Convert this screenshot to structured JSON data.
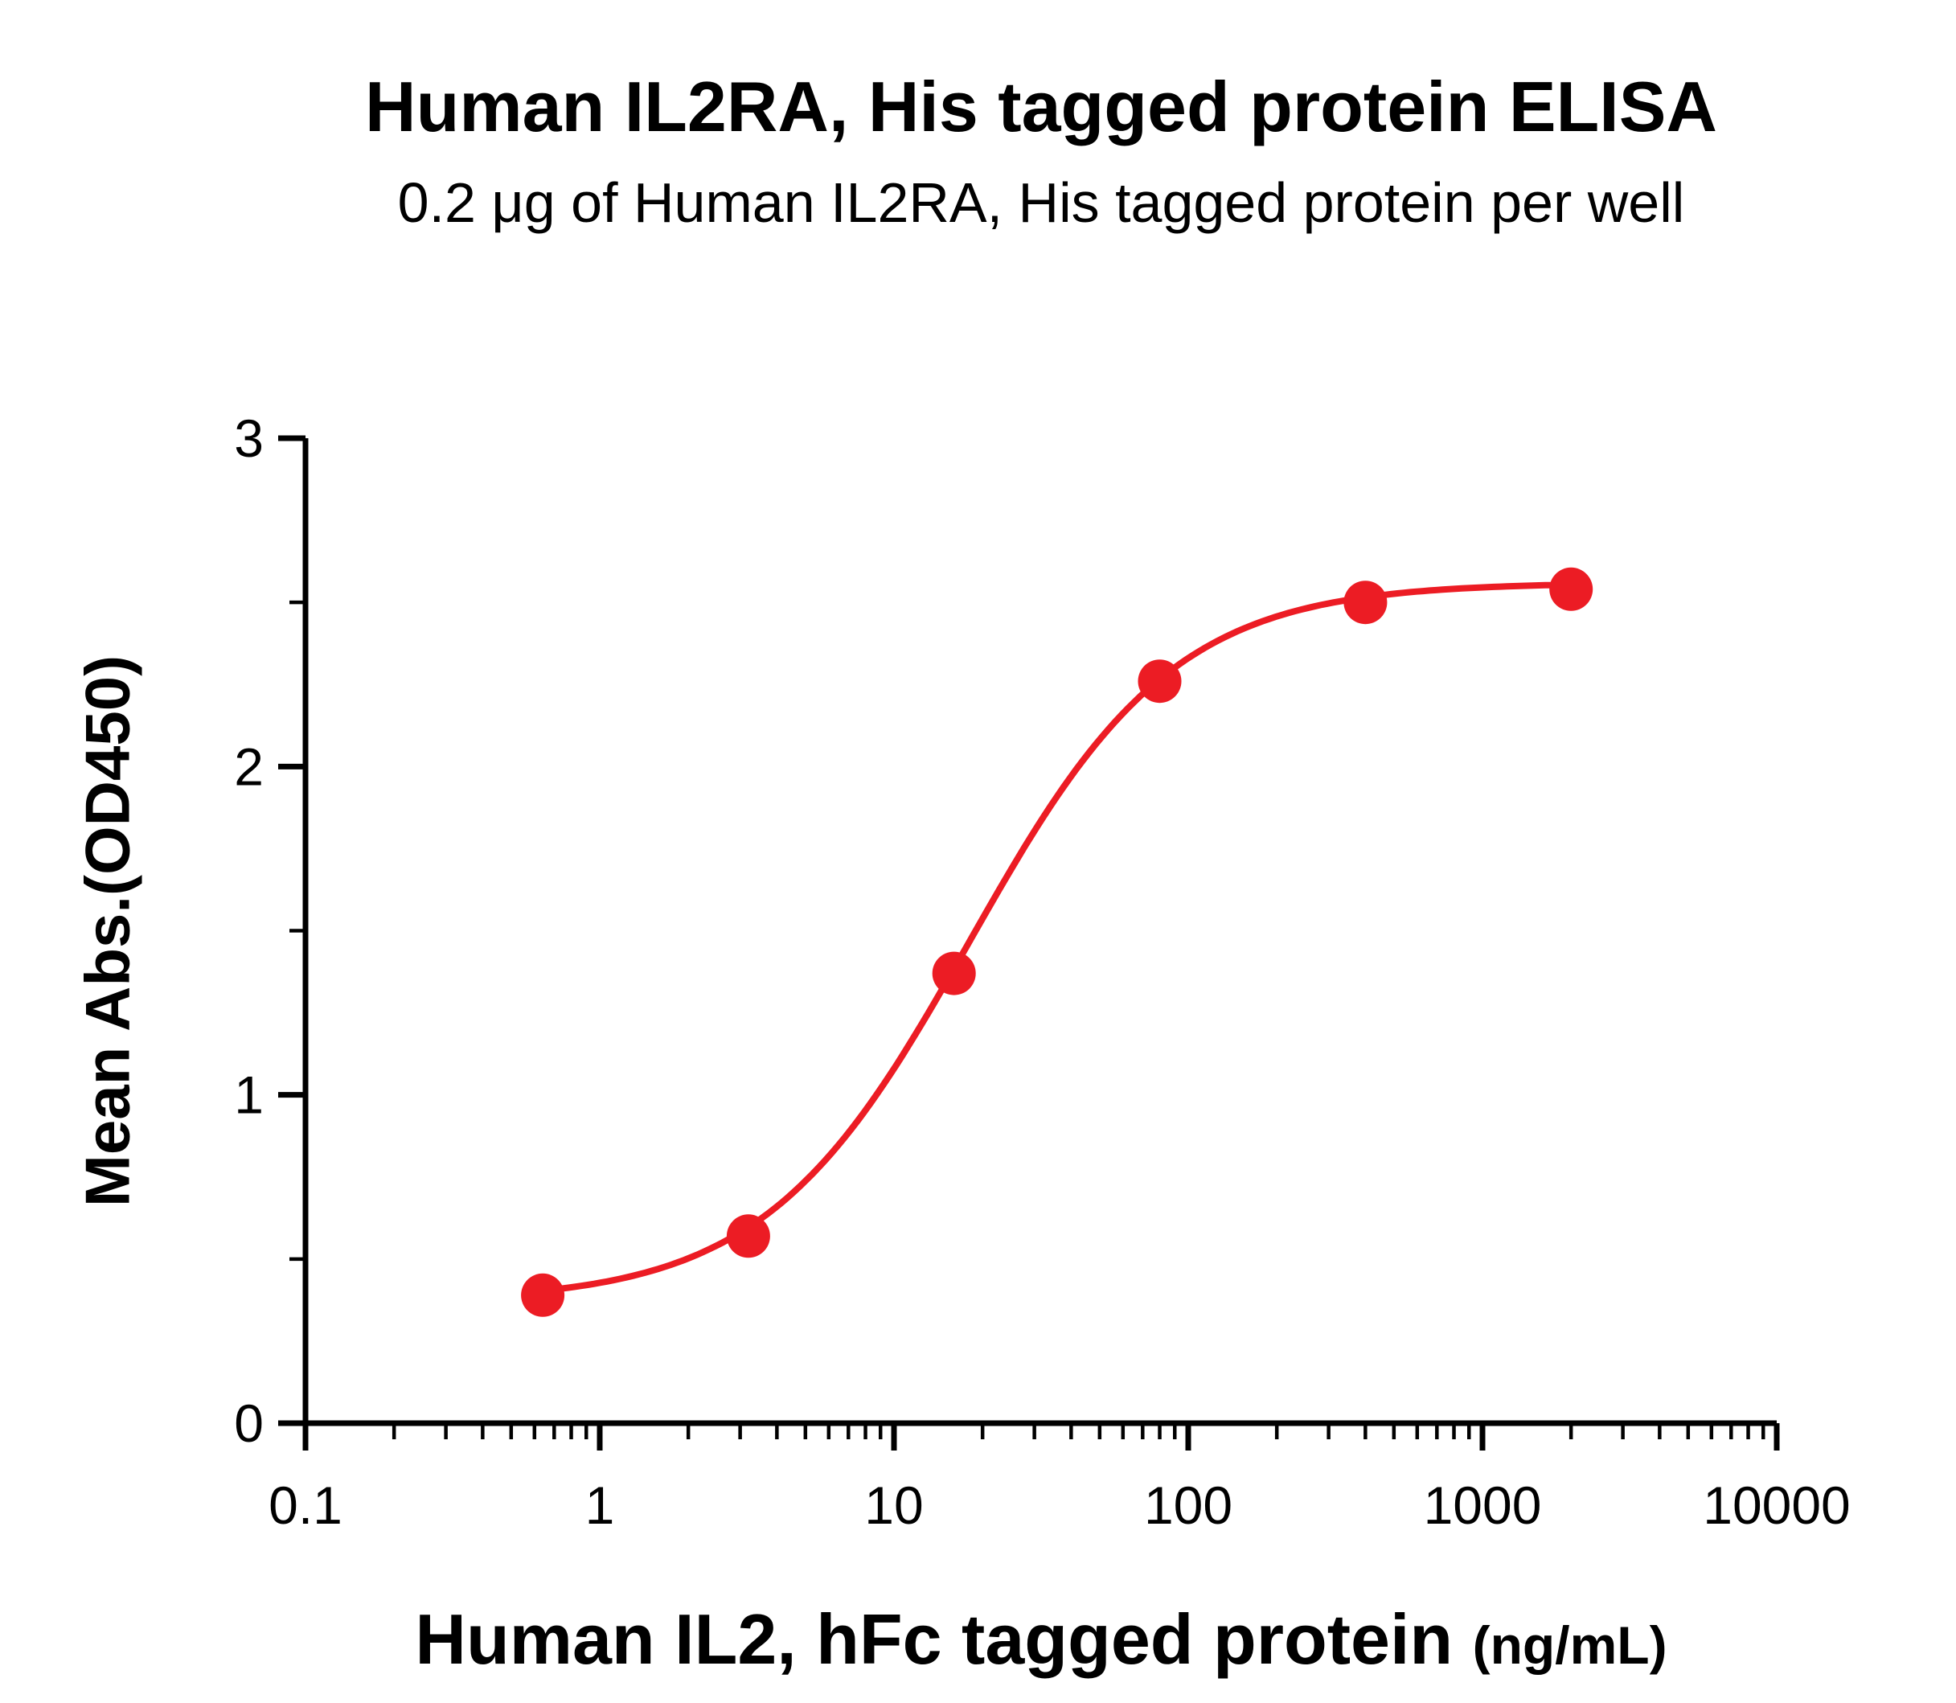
{
  "chart_data": {
    "type": "scatter",
    "title": "Human IL2RA, His tagged protein ELISA",
    "subtitle": "0.2 μg of Human IL2RA, His tagged protein per well",
    "xlabel": "Human IL2, hFc tagged protein",
    "xlabel_unit": "(ng/mL)",
    "ylabel": "Mean Abs.(OD450)",
    "x_scale": "log10",
    "xlim": [
      0.1,
      10000
    ],
    "ylim": [
      0,
      3
    ],
    "x_ticks": [
      0.1,
      1,
      10,
      100,
      1000,
      10000
    ],
    "x_tick_labels": [
      "0.1",
      "1",
      "10",
      "100",
      "1000",
      "10000"
    ],
    "y_ticks": [
      0,
      1,
      2,
      3
    ],
    "y_tick_labels": [
      "0",
      "1",
      "2",
      "3"
    ],
    "y_minor_ticks": [
      0.5,
      1.5,
      2.5
    ],
    "x_minor_ticks": "log-decade-subdivisions",
    "grid": false,
    "legend": "none",
    "marker_color": "#EC1C24",
    "line_color": "#EC1C24",
    "series": [
      {
        "points": [
          {
            "x": 0.64,
            "y": 0.39
          },
          {
            "x": 3.2,
            "y": 0.57
          },
          {
            "x": 16,
            "y": 1.37
          },
          {
            "x": 80,
            "y": 2.26
          },
          {
            "x": 400,
            "y": 2.5
          },
          {
            "x": 2000,
            "y": 2.54
          }
        ],
        "fit_curve": {
          "model": "4PL",
          "bottom": 0.37,
          "top": 2.56,
          "ec50": 18,
          "hill": 1.25
        }
      }
    ]
  }
}
